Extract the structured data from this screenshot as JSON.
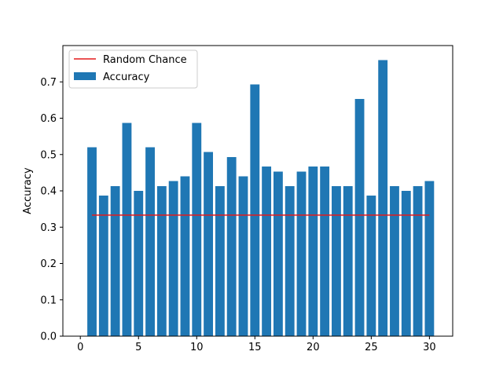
{
  "chart_data": {
    "type": "bar",
    "title": "",
    "xlabel": "",
    "ylabel": "Accuracy",
    "xlim": [
      -1.5,
      32
    ],
    "ylim": [
      0,
      0.8
    ],
    "xticks": [
      0,
      5,
      10,
      15,
      20,
      25,
      30
    ],
    "xtick_labels": [
      "0",
      "5",
      "10",
      "15",
      "20",
      "25",
      "30"
    ],
    "yticks": [
      0.0,
      0.1,
      0.2,
      0.3,
      0.4,
      0.5,
      0.6,
      0.7
    ],
    "ytick_labels": [
      "0.0",
      "0.1",
      "0.2",
      "0.3",
      "0.4",
      "0.5",
      "0.6",
      "0.7"
    ],
    "grid": false,
    "legend_position": "top-left",
    "x": [
      1,
      2,
      3,
      4,
      5,
      6,
      7,
      8,
      9,
      10,
      11,
      12,
      13,
      14,
      15,
      16,
      17,
      18,
      19,
      20,
      21,
      22,
      23,
      24,
      25,
      26,
      27,
      28,
      29,
      30
    ],
    "series": [
      {
        "name": "Accuracy",
        "type": "bar",
        "color": "#1f77b4",
        "values": [
          0.52,
          0.387,
          0.413,
          0.587,
          0.4,
          0.52,
          0.413,
          0.427,
          0.44,
          0.587,
          0.507,
          0.413,
          0.493,
          0.44,
          0.693,
          0.467,
          0.453,
          0.413,
          0.453,
          0.467,
          0.467,
          0.413,
          0.413,
          0.653,
          0.387,
          0.76,
          0.413,
          0.4,
          0.413,
          0.427
        ]
      },
      {
        "name": "Random Chance",
        "type": "line",
        "color": "#e31a1c",
        "x": [
          1,
          30
        ],
        "values": [
          0.3333,
          0.3333
        ]
      }
    ]
  }
}
